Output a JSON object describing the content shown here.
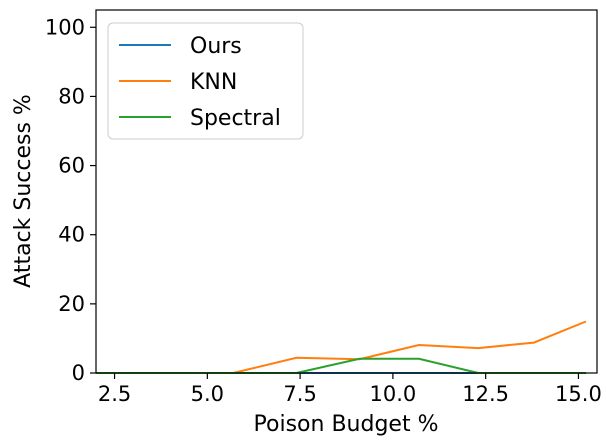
{
  "chart_data": {
    "type": "line",
    "title": "",
    "xlabel": "Poison Budget %",
    "ylabel": "Attack Success %",
    "xlim": [
      2.0,
      15.5
    ],
    "ylim": [
      0,
      105
    ],
    "xticks": [
      2.5,
      5.0,
      7.5,
      10.0,
      12.5,
      15.0
    ],
    "xtick_labels": [
      "2.5",
      "5.0",
      "7.5",
      "10.0",
      "12.5",
      "15.0"
    ],
    "yticks": [
      0,
      20,
      40,
      60,
      80,
      100
    ],
    "ytick_labels": [
      "0",
      "20",
      "40",
      "60",
      "80",
      "100"
    ],
    "grid": false,
    "legend_position": "top-left",
    "x": [
      2.0,
      3.6,
      5.7,
      7.4,
      9.1,
      10.7,
      12.3,
      13.8,
      15.2
    ],
    "series": [
      {
        "name": "Ours",
        "color": "#1f77b4",
        "values": [
          0,
          0,
          0,
          0,
          0,
          0,
          0,
          0,
          0
        ]
      },
      {
        "name": "KNN",
        "color": "#ff7f0e",
        "values": [
          0,
          0,
          0,
          4.4,
          4.0,
          8.1,
          7.2,
          8.8,
          14.9
        ]
      },
      {
        "name": "Spectral",
        "color": "#2ca02c",
        "values": [
          0,
          0,
          0,
          0,
          4.1,
          4.1,
          0,
          0,
          0
        ]
      }
    ]
  }
}
